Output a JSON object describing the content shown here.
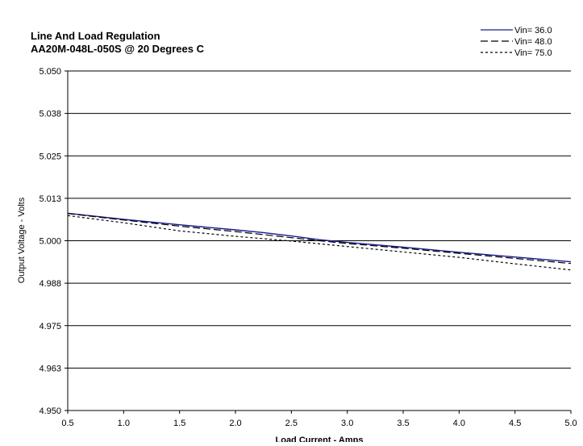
{
  "chart_data": {
    "type": "line",
    "title": [
      "Line And Load Regulation",
      "AA20M-048L-050S @ 20 Degrees C"
    ],
    "xlabel": "Load Current - Amps",
    "ylabel": "Output Voltage - Volts",
    "xlim": [
      0.5,
      5.0
    ],
    "ylim": [
      4.95,
      5.05
    ],
    "x_ticks": [
      "0.5",
      "1.0",
      "1.5",
      "2.0",
      "2.5",
      "3.0",
      "3.5",
      "4.0",
      "4.5",
      "5.0"
    ],
    "y_ticks": [
      "4.950",
      "4.963",
      "4.975",
      "4.988",
      "5.000",
      "5.013",
      "5.025",
      "5.038",
      "5.050"
    ],
    "grid": "horizontal",
    "legend_position": "top-right",
    "series": [
      {
        "name": "Vin= 36.0",
        "color": "#1a1a8c",
        "dash": "solid",
        "x": [
          0.5,
          1.0,
          1.5,
          2.0,
          2.25,
          2.5,
          2.75,
          3.0,
          3.5,
          4.0,
          4.5,
          5.0
        ],
        "y": [
          5.0081,
          5.0063,
          5.0047,
          5.0032,
          5.0024,
          5.0014,
          5.0003,
          4.9995,
          4.9981,
          4.9966,
          4.9952,
          4.9938
        ]
      },
      {
        "name": "Vin= 48.0",
        "color": "#000000",
        "dash": "long-dash",
        "x": [
          0.5,
          1.0,
          1.5,
          2.0,
          2.25,
          2.5,
          2.75,
          3.0,
          3.5,
          4.0,
          4.5,
          5.0
        ],
        "y": [
          5.008,
          5.0061,
          5.0043,
          5.0027,
          5.0018,
          5.0009,
          5.0,
          4.9992,
          4.9978,
          4.9963,
          4.9948,
          4.9933
        ]
      },
      {
        "name": "Vin= 75.0",
        "color": "#000000",
        "dash": "short-dash",
        "x": [
          0.5,
          1.0,
          1.5,
          2.0,
          2.5,
          3.0,
          3.5,
          4.0,
          4.5,
          5.0
        ],
        "y": [
          5.0074,
          5.0053,
          5.0029,
          5.0013,
          4.9999,
          4.9983,
          4.9967,
          4.9951,
          4.9932,
          4.9914
        ]
      }
    ]
  }
}
